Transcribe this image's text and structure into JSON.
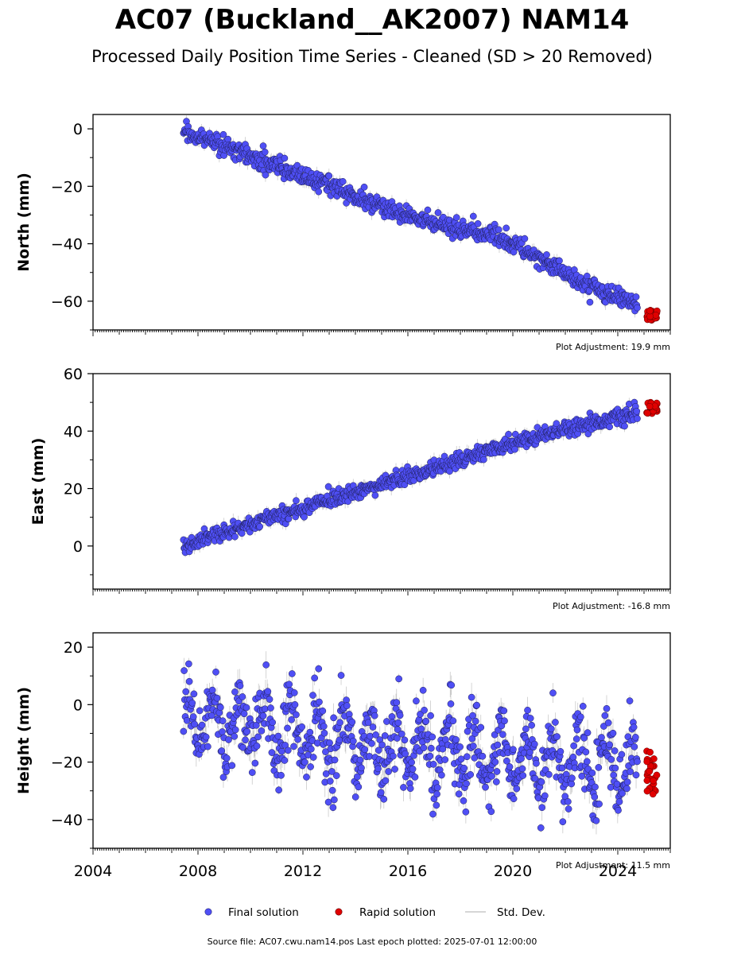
{
  "chart_data": {
    "type": "scatter",
    "title": "AC07 (Buckland__AK2007) NAM14",
    "subtitle": "Processed Daily Position Time Series - Cleaned (SD > 20 Removed)",
    "source": "Source file: AC07.cwu.nam14.pos  Last epoch plotted: 2025-07-01 12:00:00",
    "xlim": [
      2004,
      2026
    ],
    "x_ticks": [
      "2004",
      "2008",
      "2012",
      "2016",
      "2020",
      "2024"
    ],
    "legend": {
      "position": "bottom-center",
      "entries": [
        "Final solution",
        "Rapid solution",
        "Std. Dev."
      ]
    },
    "colors": {
      "final": "#4f4ff5",
      "rapid": "#e00000",
      "stddev": "#9a9a9a"
    },
    "panels": [
      {
        "ylabel": "North (mm)",
        "ylim": [
          -70,
          5
        ],
        "y_ticks": [
          0,
          -20,
          -40,
          -60
        ],
        "y_tick_labels": [
          "0",
          "−20",
          "−40",
          "−60"
        ],
        "adjustment": "Plot Adjustment: 19.9 mm",
        "final_trend": [
          [
            2007.5,
            -1
          ],
          [
            2009.0,
            -6
          ],
          [
            2011.0,
            -13
          ],
          [
            2013.0,
            -20
          ],
          [
            2015.0,
            -27
          ],
          [
            2017.0,
            -33
          ],
          [
            2018.5,
            -36
          ],
          [
            2019.3,
            -37
          ],
          [
            2021.0,
            -45
          ],
          [
            2022.5,
            -53
          ],
          [
            2023.5,
            -57
          ],
          [
            2024.7,
            -61
          ]
        ],
        "scatter_sd": 1.6,
        "rapid": {
          "x": [
            2025.1,
            2025.5
          ],
          "y": [
            -67,
            -63
          ]
        }
      },
      {
        "ylabel": "East (mm)",
        "ylim": [
          -15,
          60
        ],
        "y_ticks": [
          60,
          40,
          20,
          0
        ],
        "y_tick_labels": [
          "60",
          "40",
          "20",
          "0"
        ],
        "adjustment": "Plot Adjustment: -16.8 mm",
        "final_trend": [
          [
            2007.5,
            0
          ],
          [
            2010.0,
            8
          ],
          [
            2012.0,
            13
          ],
          [
            2014.0,
            19
          ],
          [
            2016.0,
            24
          ],
          [
            2018.0,
            30
          ],
          [
            2020.0,
            36
          ],
          [
            2022.0,
            41
          ],
          [
            2024.7,
            46
          ]
        ],
        "scatter_sd": 1.3,
        "rapid": {
          "x": [
            2025.1,
            2025.5
          ],
          "y": [
            46,
            50
          ]
        }
      },
      {
        "ylabel": "Height (mm)",
        "ylim": [
          -50,
          25
        ],
        "y_ticks": [
          20,
          0,
          -20,
          -40
        ],
        "y_tick_labels": [
          "20",
          "0",
          "−20",
          "−40"
        ],
        "adjustment": "Plot Adjustment: 11.5 mm",
        "final_trend": [
          [
            2007.5,
            -5
          ],
          [
            2010.0,
            -8
          ],
          [
            2013.0,
            -12
          ],
          [
            2016.0,
            -15
          ],
          [
            2019.0,
            -18
          ],
          [
            2022.0,
            -20
          ],
          [
            2024.7,
            -21
          ]
        ],
        "seasonal_amplitude": 9,
        "scatter_sd": 6,
        "rapid": {
          "x": [
            2025.1,
            2025.5
          ],
          "y": [
            -32,
            -16
          ]
        }
      }
    ]
  }
}
